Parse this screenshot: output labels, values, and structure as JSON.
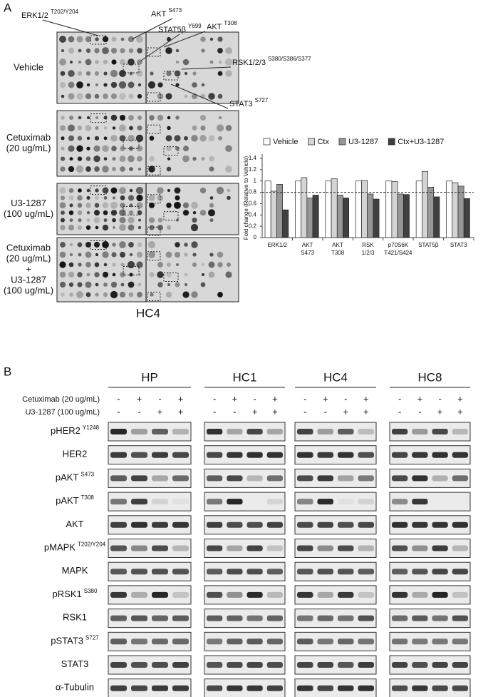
{
  "panel_a": {
    "label": "A",
    "annotations": [
      {
        "name": "ERK1/2",
        "site": "T202/Y204"
      },
      {
        "name": "AKT",
        "site": "S473"
      },
      {
        "name": "STAT5β",
        "site": "Y699"
      },
      {
        "name": "AKT",
        "site": "T308"
      },
      {
        "name": "RSK1/2/3",
        "site": "S380/S386/S377"
      },
      {
        "name": "STAT3",
        "site": "S727"
      }
    ],
    "conditions": [
      [
        "Vehicle"
      ],
      [
        "Cetuximab",
        "(20 ug/mL)"
      ],
      [
        "U3-1287",
        "(100 ug/mL)"
      ],
      [
        "Cetuximab",
        "(20 ug/mL)",
        "+",
        "U3-1287",
        "(100 ug/mL)"
      ]
    ],
    "cell_line": "HC4"
  },
  "chart_data": {
    "type": "bar",
    "y_label": "Fold change (Relative to Vehicle)",
    "categories": [
      [
        "ERK1/2"
      ],
      [
        "AKT",
        "S473"
      ],
      [
        "AKT",
        "T308"
      ],
      [
        "RSK",
        "1/2/3"
      ],
      [
        "p70S6K",
        "T421/S424"
      ],
      [
        "STAT5β"
      ],
      [
        "STAT3"
      ]
    ],
    "series": [
      {
        "name": "Vehicle",
        "color": "#ffffff",
        "values": [
          1.0,
          1.0,
          1.0,
          1.0,
          1.0,
          1.0,
          1.0
        ]
      },
      {
        "name": "Ctx",
        "color": "#d4d4d4",
        "values": [
          0.82,
          1.06,
          1.04,
          1.01,
          0.99,
          1.17,
          0.97
        ]
      },
      {
        "name": "U3-1287",
        "color": "#969696",
        "values": [
          0.94,
          0.7,
          0.75,
          0.77,
          0.77,
          0.89,
          0.91
        ]
      },
      {
        "name": "Ctx+U3-1287",
        "color": "#404040",
        "values": [
          0.49,
          0.75,
          0.7,
          0.68,
          0.76,
          0.72,
          0.69
        ]
      }
    ],
    "ylim": [
      0,
      1.4
    ],
    "yticks": [
      0,
      0.2,
      0.4,
      0.6,
      0.8,
      1,
      1.2,
      1.4
    ],
    "reference_line": 0.8,
    "legend": "top"
  },
  "panel_b": {
    "label": "B",
    "cell_lines": [
      "HP",
      "HC1",
      "HC4",
      "HC8"
    ],
    "treatments": [
      {
        "name": "Cetuximab (20 ug/mL)",
        "signs": [
          "-",
          "+",
          "-",
          "+"
        ]
      },
      {
        "name": "U3-1287 (100 ug/mL)",
        "signs": [
          "-",
          "-",
          "+",
          "+"
        ]
      }
    ],
    "proteins": [
      {
        "name": "pHER2",
        "site": "Y1248"
      },
      {
        "name": "HER2"
      },
      {
        "name": "pAKT",
        "site": "S473"
      },
      {
        "name": "pAKT",
        "site": "T308"
      },
      {
        "name": "AKT"
      },
      {
        "name": "pMAPK",
        "site": "T202/Y204"
      },
      {
        "name": "MAPK"
      },
      {
        "name": "pRSK1",
        "site": "S380"
      },
      {
        "name": "RSK1"
      },
      {
        "name": "pSTAT3",
        "site": "S727"
      },
      {
        "name": "STAT3"
      },
      {
        "name": "α-Tubulin"
      }
    ]
  }
}
